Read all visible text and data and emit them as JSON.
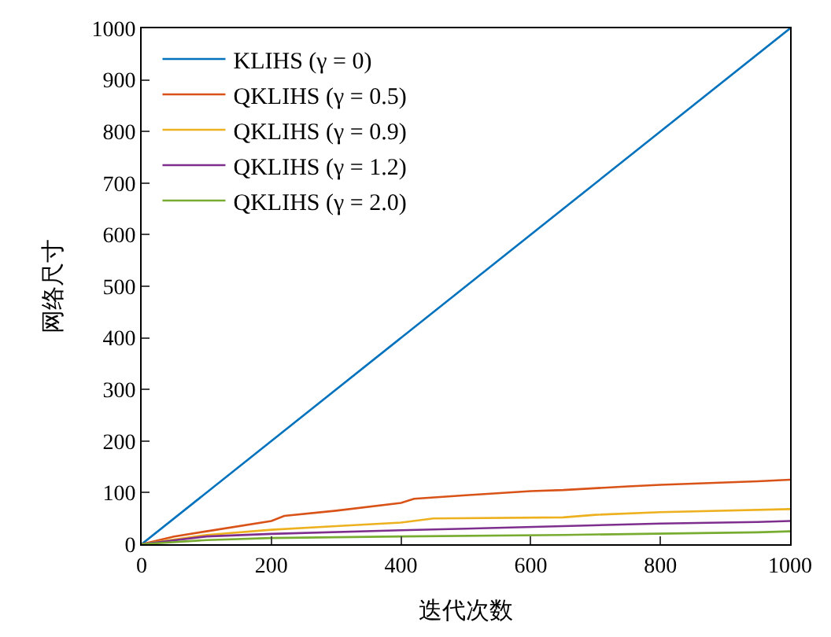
{
  "chart_data": {
    "type": "line",
    "xlabel": "迭代次数",
    "ylabel": "网络尺寸",
    "xlim": [
      0,
      1000
    ],
    "ylim": [
      0,
      1000
    ],
    "xticks": [
      0,
      200,
      400,
      600,
      800,
      1000
    ],
    "yticks": [
      0,
      100,
      200,
      300,
      400,
      500,
      600,
      700,
      800,
      900,
      1000
    ],
    "legend": "top left",
    "marker": "none",
    "line_style": "solid",
    "series": [
      {
        "name": "KLIHS (γ = 0)",
        "color": "#0072bd",
        "x": [
          0,
          1000
        ],
        "values": [
          0,
          1000
        ]
      },
      {
        "name": "QKLIHS (γ = 0.5)",
        "color": "#d95319",
        "x": [
          0,
          50,
          100,
          200,
          220,
          300,
          400,
          420,
          500,
          600,
          650,
          750,
          800,
          950,
          1000
        ],
        "values": [
          0,
          15,
          25,
          45,
          55,
          65,
          80,
          88,
          95,
          103,
          105,
          112,
          115,
          122,
          125
        ]
      },
      {
        "name": "QKLIHS (γ = 0.9)",
        "color": "#edb120",
        "x": [
          0,
          100,
          200,
          300,
          400,
          450,
          650,
          700,
          800,
          1000
        ],
        "values": [
          0,
          18,
          28,
          35,
          42,
          50,
          52,
          57,
          62,
          68
        ]
      },
      {
        "name": "QKLIHS (γ = 1.2)",
        "color": "#7e2f8e",
        "x": [
          0,
          100,
          200,
          400,
          500,
          650,
          800,
          950,
          1000
        ],
        "values": [
          0,
          15,
          20,
          27,
          30,
          35,
          40,
          43,
          45
        ]
      },
      {
        "name": "QKLIHS (γ = 2.0)",
        "color": "#77ac30",
        "x": [
          0,
          100,
          200,
          400,
          650,
          950,
          1000
        ],
        "values": [
          0,
          8,
          12,
          15,
          18,
          23,
          25
        ]
      }
    ]
  }
}
